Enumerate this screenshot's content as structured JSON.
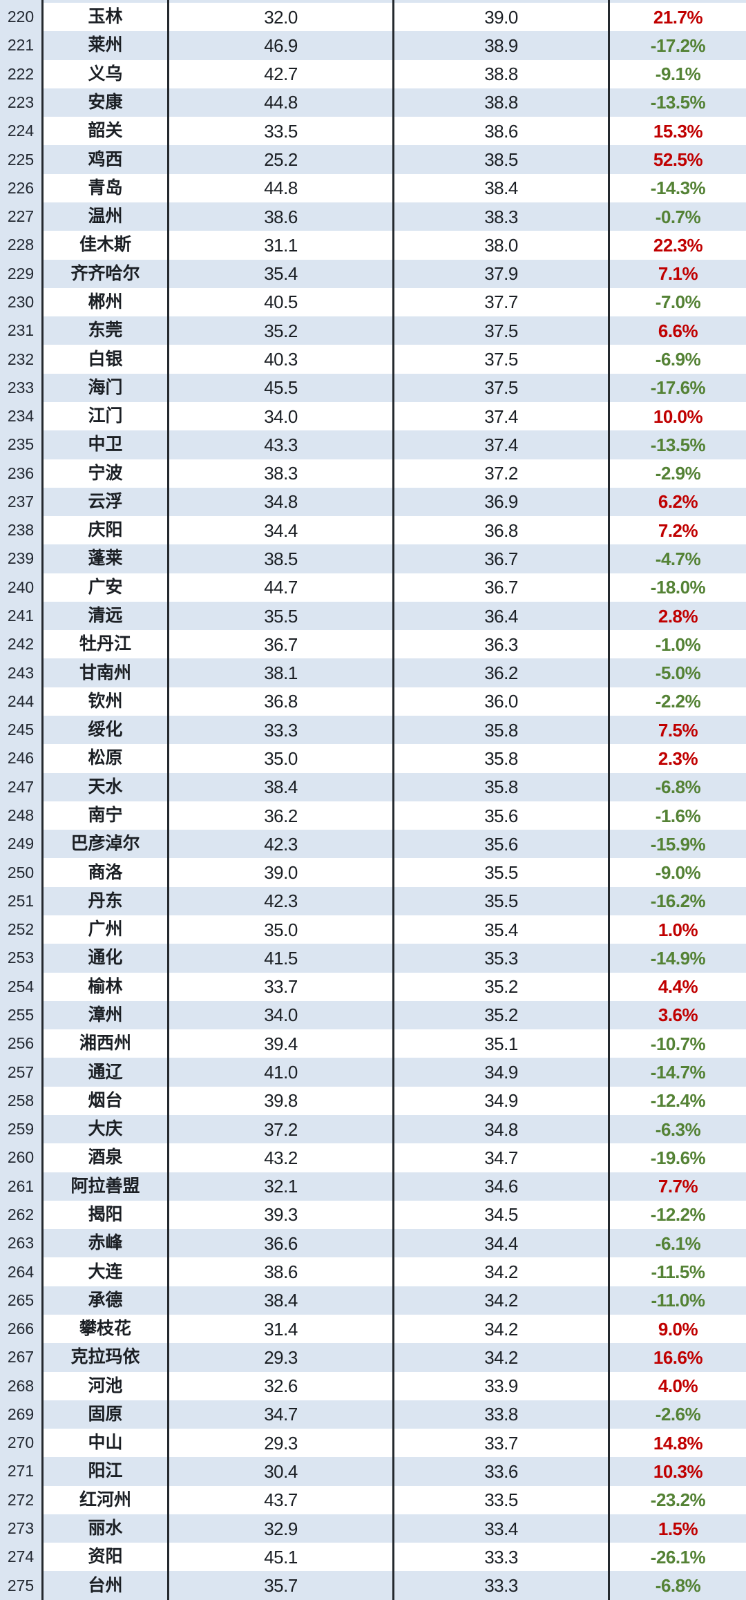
{
  "table": {
    "description": "city-ranking-table",
    "rank_range": {
      "first_visible": "220",
      "last_visible": "275"
    },
    "colors": {
      "positive_change": "#c00000",
      "negative_change": "#548235",
      "stripe_blue": "#dbe5f1",
      "column_rule": "#24292e"
    },
    "rows": [
      {
        "rank": "220",
        "city": "玉林",
        "value1": "32.0",
        "value2": "39.0",
        "change": "21.7%"
      },
      {
        "rank": "221",
        "city": "莱州",
        "value1": "46.9",
        "value2": "38.9",
        "change": "-17.2%"
      },
      {
        "rank": "222",
        "city": "义乌",
        "value1": "42.7",
        "value2": "38.8",
        "change": "-9.1%"
      },
      {
        "rank": "223",
        "city": "安康",
        "value1": "44.8",
        "value2": "38.8",
        "change": "-13.5%"
      },
      {
        "rank": "224",
        "city": "韶关",
        "value1": "33.5",
        "value2": "38.6",
        "change": "15.3%"
      },
      {
        "rank": "225",
        "city": "鸡西",
        "value1": "25.2",
        "value2": "38.5",
        "change": "52.5%"
      },
      {
        "rank": "226",
        "city": "青岛",
        "value1": "44.8",
        "value2": "38.4",
        "change": "-14.3%"
      },
      {
        "rank": "227",
        "city": "温州",
        "value1": "38.6",
        "value2": "38.3",
        "change": "-0.7%"
      },
      {
        "rank": "228",
        "city": "佳木斯",
        "value1": "31.1",
        "value2": "38.0",
        "change": "22.3%"
      },
      {
        "rank": "229",
        "city": "齐齐哈尔",
        "value1": "35.4",
        "value2": "37.9",
        "change": "7.1%"
      },
      {
        "rank": "230",
        "city": "郴州",
        "value1": "40.5",
        "value2": "37.7",
        "change": "-7.0%"
      },
      {
        "rank": "231",
        "city": "东莞",
        "value1": "35.2",
        "value2": "37.5",
        "change": "6.6%"
      },
      {
        "rank": "232",
        "city": "白银",
        "value1": "40.3",
        "value2": "37.5",
        "change": "-6.9%"
      },
      {
        "rank": "233",
        "city": "海门",
        "value1": "45.5",
        "value2": "37.5",
        "change": "-17.6%"
      },
      {
        "rank": "234",
        "city": "江门",
        "value1": "34.0",
        "value2": "37.4",
        "change": "10.0%"
      },
      {
        "rank": "235",
        "city": "中卫",
        "value1": "43.3",
        "value2": "37.4",
        "change": "-13.5%"
      },
      {
        "rank": "236",
        "city": "宁波",
        "value1": "38.3",
        "value2": "37.2",
        "change": "-2.9%"
      },
      {
        "rank": "237",
        "city": "云浮",
        "value1": "34.8",
        "value2": "36.9",
        "change": "6.2%"
      },
      {
        "rank": "238",
        "city": "庆阳",
        "value1": "34.4",
        "value2": "36.8",
        "change": "7.2%"
      },
      {
        "rank": "239",
        "city": "蓬莱",
        "value1": "38.5",
        "value2": "36.7",
        "change": "-4.7%"
      },
      {
        "rank": "240",
        "city": "广安",
        "value1": "44.7",
        "value2": "36.7",
        "change": "-18.0%"
      },
      {
        "rank": "241",
        "city": "清远",
        "value1": "35.5",
        "value2": "36.4",
        "change": "2.8%"
      },
      {
        "rank": "242",
        "city": "牡丹江",
        "value1": "36.7",
        "value2": "36.3",
        "change": "-1.0%"
      },
      {
        "rank": "243",
        "city": "甘南州",
        "value1": "38.1",
        "value2": "36.2",
        "change": "-5.0%"
      },
      {
        "rank": "244",
        "city": "钦州",
        "value1": "36.8",
        "value2": "36.0",
        "change": "-2.2%"
      },
      {
        "rank": "245",
        "city": "绥化",
        "value1": "33.3",
        "value2": "35.8",
        "change": "7.5%"
      },
      {
        "rank": "246",
        "city": "松原",
        "value1": "35.0",
        "value2": "35.8",
        "change": "2.3%"
      },
      {
        "rank": "247",
        "city": "天水",
        "value1": "38.4",
        "value2": "35.8",
        "change": "-6.8%"
      },
      {
        "rank": "248",
        "city": "南宁",
        "value1": "36.2",
        "value2": "35.6",
        "change": "-1.6%"
      },
      {
        "rank": "249",
        "city": "巴彦淖尔",
        "value1": "42.3",
        "value2": "35.6",
        "change": "-15.9%"
      },
      {
        "rank": "250",
        "city": "商洛",
        "value1": "39.0",
        "value2": "35.5",
        "change": "-9.0%"
      },
      {
        "rank": "251",
        "city": "丹东",
        "value1": "42.3",
        "value2": "35.5",
        "change": "-16.2%"
      },
      {
        "rank": "252",
        "city": "广州",
        "value1": "35.0",
        "value2": "35.4",
        "change": "1.0%"
      },
      {
        "rank": "253",
        "city": "通化",
        "value1": "41.5",
        "value2": "35.3",
        "change": "-14.9%"
      },
      {
        "rank": "254",
        "city": "榆林",
        "value1": "33.7",
        "value2": "35.2",
        "change": "4.4%"
      },
      {
        "rank": "255",
        "city": "漳州",
        "value1": "34.0",
        "value2": "35.2",
        "change": "3.6%"
      },
      {
        "rank": "256",
        "city": "湘西州",
        "value1": "39.4",
        "value2": "35.1",
        "change": "-10.7%"
      },
      {
        "rank": "257",
        "city": "通辽",
        "value1": "41.0",
        "value2": "34.9",
        "change": "-14.7%"
      },
      {
        "rank": "258",
        "city": "烟台",
        "value1": "39.8",
        "value2": "34.9",
        "change": "-12.4%"
      },
      {
        "rank": "259",
        "city": "大庆",
        "value1": "37.2",
        "value2": "34.8",
        "change": "-6.3%"
      },
      {
        "rank": "260",
        "city": "酒泉",
        "value1": "43.2",
        "value2": "34.7",
        "change": "-19.6%"
      },
      {
        "rank": "261",
        "city": "阿拉善盟",
        "value1": "32.1",
        "value2": "34.6",
        "change": "7.7%"
      },
      {
        "rank": "262",
        "city": "揭阳",
        "value1": "39.3",
        "value2": "34.5",
        "change": "-12.2%"
      },
      {
        "rank": "263",
        "city": "赤峰",
        "value1": "36.6",
        "value2": "34.4",
        "change": "-6.1%"
      },
      {
        "rank": "264",
        "city": "大连",
        "value1": "38.6",
        "value2": "34.2",
        "change": "-11.5%"
      },
      {
        "rank": "265",
        "city": "承德",
        "value1": "38.4",
        "value2": "34.2",
        "change": "-11.0%"
      },
      {
        "rank": "266",
        "city": "攀枝花",
        "value1": "31.4",
        "value2": "34.2",
        "change": "9.0%"
      },
      {
        "rank": "267",
        "city": "克拉玛依",
        "value1": "29.3",
        "value2": "34.2",
        "change": "16.6%"
      },
      {
        "rank": "268",
        "city": "河池",
        "value1": "32.6",
        "value2": "33.9",
        "change": "4.0%"
      },
      {
        "rank": "269",
        "city": "固原",
        "value1": "34.7",
        "value2": "33.8",
        "change": "-2.6%"
      },
      {
        "rank": "270",
        "city": "中山",
        "value1": "29.3",
        "value2": "33.7",
        "change": "14.8%"
      },
      {
        "rank": "271",
        "city": "阳江",
        "value1": "30.4",
        "value2": "33.6",
        "change": "10.3%"
      },
      {
        "rank": "272",
        "city": "红河州",
        "value1": "43.7",
        "value2": "33.5",
        "change": "-23.2%"
      },
      {
        "rank": "273",
        "city": "丽水",
        "value1": "32.9",
        "value2": "33.4",
        "change": "1.5%"
      },
      {
        "rank": "274",
        "city": "资阳",
        "value1": "45.1",
        "value2": "33.3",
        "change": "-26.1%"
      },
      {
        "rank": "275",
        "city": "台州",
        "value1": "35.7",
        "value2": "33.3",
        "change": "-6.8%"
      }
    ]
  }
}
